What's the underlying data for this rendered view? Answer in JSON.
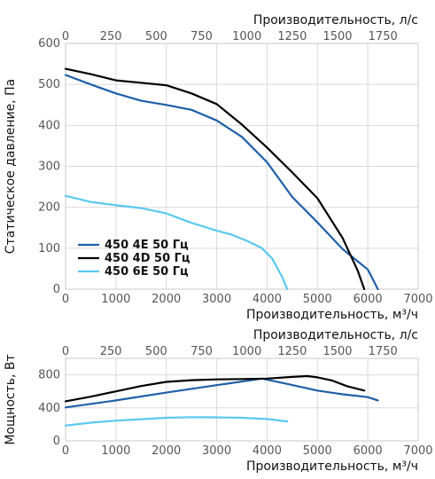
{
  "chart_data": [
    {
      "type": "line",
      "title": "",
      "xlabel": "Производительность, м³/ч",
      "x2label": "Производительность, л/с",
      "ylabel": "Статическое давление, Па",
      "xlim": [
        0,
        7000
      ],
      "ylim": [
        0,
        600
      ],
      "x2lim": [
        0,
        1944.4
      ],
      "xticks": [
        "0",
        "1000",
        "2000",
        "3000",
        "4000",
        "5000",
        "6000",
        "7000"
      ],
      "x2ticks": [
        "0",
        "250",
        "500",
        "750",
        "1000",
        "1250",
        "1500",
        "1750"
      ],
      "yticks": [
        "0",
        "100",
        "200",
        "300",
        "400",
        "500",
        "600"
      ],
      "grid": true,
      "legend_position": "bottom-left",
      "series": [
        {
          "name": "450 4E 50 Гц",
          "color": "#1f5fa8",
          "points": [
            [
              0,
              523
            ],
            [
              500,
              500
            ],
            [
              1000,
              478
            ],
            [
              1500,
              460
            ],
            [
              2000,
              450
            ],
            [
              2500,
              438
            ],
            [
              3000,
              412
            ],
            [
              3500,
              372
            ],
            [
              4000,
              310
            ],
            [
              4500,
              225
            ],
            [
              5000,
              163
            ],
            [
              5500,
              98
            ],
            [
              5800,
              68
            ],
            [
              6000,
              48
            ],
            [
              6200,
              0
            ]
          ]
        },
        {
          "name": "450 4D 50 Гц",
          "color": "#000000",
          "points": [
            [
              0,
              538
            ],
            [
              500,
              525
            ],
            [
              1000,
              510
            ],
            [
              1500,
              504
            ],
            [
              2000,
              498
            ],
            [
              2500,
              478
            ],
            [
              3000,
              452
            ],
            [
              3500,
              402
            ],
            [
              4000,
              346
            ],
            [
              4500,
              285
            ],
            [
              5000,
              222
            ],
            [
              5500,
              125
            ],
            [
              5800,
              45
            ],
            [
              5930,
              0
            ]
          ]
        },
        {
          "name": "450 6E 50 Гц",
          "color": "#5ac8f0",
          "points": [
            [
              0,
              228
            ],
            [
              500,
              213
            ],
            [
              1000,
              205
            ],
            [
              1500,
              198
            ],
            [
              2000,
              185
            ],
            [
              2500,
              162
            ],
            [
              3000,
              143
            ],
            [
              3300,
              133
            ],
            [
              3600,
              118
            ],
            [
              3900,
              100
            ],
            [
              4100,
              75
            ],
            [
              4300,
              30
            ],
            [
              4400,
              0
            ]
          ]
        }
      ]
    },
    {
      "type": "line",
      "title": "",
      "xlabel": "Производительность, м³/ч",
      "x2label": "Производительность, л/с",
      "ylabel": "Мощность, Вт",
      "xlim": [
        0,
        7000
      ],
      "ylim": [
        0,
        1000
      ],
      "x2lim": [
        0,
        1944.4
      ],
      "xticks": [
        "0",
        "1000",
        "2000",
        "3000",
        "4000",
        "5000",
        "6000",
        "7000"
      ],
      "x2ticks": [
        "0",
        "250",
        "500",
        "750",
        "1000",
        "1250",
        "1500",
        "1750"
      ],
      "yticks": [
        "0",
        "400",
        "800"
      ],
      "grid": true,
      "series": [
        {
          "name": "450 4E 50 Гц",
          "color": "#1f5fa8",
          "points": [
            [
              0,
              405
            ],
            [
              1000,
              490
            ],
            [
              2000,
              585
            ],
            [
              3000,
              675
            ],
            [
              3900,
              755
            ],
            [
              4400,
              690
            ],
            [
              5000,
              610
            ],
            [
              5500,
              565
            ],
            [
              6000,
              530
            ],
            [
              6200,
              490
            ]
          ]
        },
        {
          "name": "450 4D 50 Гц",
          "color": "#000000",
          "points": [
            [
              0,
              480
            ],
            [
              500,
              535
            ],
            [
              1000,
              600
            ],
            [
              1500,
              665
            ],
            [
              2000,
              715
            ],
            [
              2500,
              735
            ],
            [
              3000,
              745
            ],
            [
              3500,
              750
            ],
            [
              4000,
              755
            ],
            [
              4500,
              775
            ],
            [
              4800,
              785
            ],
            [
              5000,
              770
            ],
            [
              5300,
              730
            ],
            [
              5600,
              660
            ],
            [
              5930,
              610
            ]
          ]
        },
        {
          "name": "450 6E 50 Гц",
          "color": "#5ac8f0",
          "points": [
            [
              0,
              185
            ],
            [
              500,
              220
            ],
            [
              1000,
              245
            ],
            [
              1500,
              262
            ],
            [
              2000,
              280
            ],
            [
              2500,
              287
            ],
            [
              3000,
              285
            ],
            [
              3500,
              280
            ],
            [
              4000,
              265
            ],
            [
              4400,
              235
            ]
          ]
        }
      ]
    }
  ]
}
